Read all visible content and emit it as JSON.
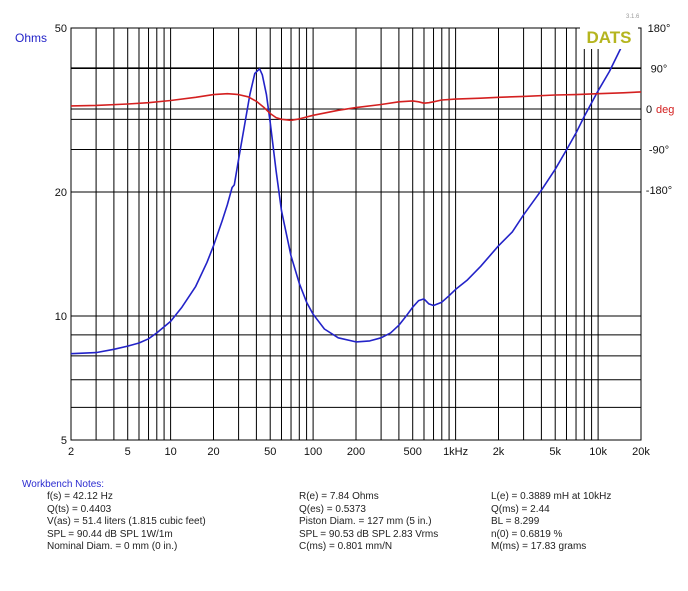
{
  "chart_data": {
    "type": "line",
    "brand": "DATS",
    "version": "3.1.6",
    "x_scale": "log",
    "xlim": [
      2,
      20000
    ],
    "x_ticks": [
      {
        "value": 2,
        "label": "2"
      },
      {
        "value": 5,
        "label": "5"
      },
      {
        "value": 10,
        "label": "10"
      },
      {
        "value": 20,
        "label": "20"
      },
      {
        "value": 50,
        "label": "50"
      },
      {
        "value": 100,
        "label": "100"
      },
      {
        "value": 200,
        "label": "200"
      },
      {
        "value": 500,
        "label": "500"
      },
      {
        "value": 1000,
        "label": "1kHz"
      },
      {
        "value": 2000,
        "label": "2k"
      },
      {
        "value": 5000,
        "label": "5k"
      },
      {
        "value": 10000,
        "label": "10k"
      },
      {
        "value": 20000,
        "label": "20k"
      }
    ],
    "y_left": {
      "label": "Ohms",
      "scale": "log",
      "lim": [
        5,
        50
      ],
      "ticks": [
        {
          "value": 5,
          "label": "5"
        },
        {
          "value": 10,
          "label": "10"
        },
        {
          "value": 20,
          "label": "20"
        },
        {
          "value": 50,
          "label": "50"
        }
      ]
    },
    "y_right": {
      "label": "deg",
      "lim": [
        -180,
        180
      ],
      "ticks": [
        {
          "value": 180,
          "label": "180°"
        },
        {
          "value": 90,
          "label": "90°"
        },
        {
          "value": 0,
          "label": "0"
        },
        {
          "value": -90,
          "label": "-90°"
        },
        {
          "value": -180,
          "label": "-180°"
        }
      ]
    },
    "grid": true,
    "series": [
      {
        "name": "Ohms",
        "color": "#2323c8",
        "axis": "left",
        "points": [
          [
            2,
            8.1
          ],
          [
            3,
            8.15
          ],
          [
            4,
            8.3
          ],
          [
            5,
            8.45
          ],
          [
            6,
            8.6
          ],
          [
            7,
            8.8
          ],
          [
            8,
            9.1
          ],
          [
            10,
            9.7
          ],
          [
            12,
            10.5
          ],
          [
            15,
            11.8
          ],
          [
            18,
            13.5
          ],
          [
            20,
            14.8
          ],
          [
            23,
            17.0
          ],
          [
            25,
            18.6
          ],
          [
            27,
            20.5
          ],
          [
            28,
            20.8
          ],
          [
            30,
            24.0
          ],
          [
            33,
            29.0
          ],
          [
            36,
            34.5
          ],
          [
            39,
            38.8
          ],
          [
            42.1,
            39.8
          ],
          [
            44,
            38.5
          ],
          [
            47,
            34.5
          ],
          [
            50,
            29.5
          ],
          [
            55,
            22.5
          ],
          [
            60,
            18.0
          ],
          [
            70,
            14.0
          ],
          [
            80,
            12.0
          ],
          [
            90,
            10.8
          ],
          [
            100,
            10.1
          ],
          [
            120,
            9.3
          ],
          [
            150,
            8.85
          ],
          [
            200,
            8.65
          ],
          [
            250,
            8.7
          ],
          [
            300,
            8.85
          ],
          [
            350,
            9.1
          ],
          [
            400,
            9.5
          ],
          [
            450,
            10.0
          ],
          [
            500,
            10.5
          ],
          [
            550,
            10.9
          ],
          [
            600,
            11.0
          ],
          [
            650,
            10.7
          ],
          [
            700,
            10.6
          ],
          [
            800,
            10.8
          ],
          [
            900,
            11.2
          ],
          [
            1000,
            11.6
          ],
          [
            1200,
            12.2
          ],
          [
            1500,
            13.2
          ],
          [
            2000,
            14.8
          ],
          [
            2500,
            16.0
          ],
          [
            3000,
            17.6
          ],
          [
            4000,
            20.2
          ],
          [
            5000,
            22.7
          ],
          [
            6000,
            25.3
          ],
          [
            7000,
            27.8
          ],
          [
            8000,
            30.5
          ],
          [
            10000,
            35.2
          ],
          [
            12000,
            39.2
          ],
          [
            14000,
            43.7
          ],
          [
            16000,
            48.0
          ]
        ]
      },
      {
        "name": "deg",
        "color": "#d42020",
        "axis": "right",
        "points": [
          [
            2,
            7
          ],
          [
            3,
            8
          ],
          [
            5,
            11
          ],
          [
            7,
            14
          ],
          [
            10,
            19
          ],
          [
            15,
            26
          ],
          [
            20,
            32
          ],
          [
            25,
            34
          ],
          [
            28,
            33
          ],
          [
            30,
            32
          ],
          [
            35,
            27
          ],
          [
            40,
            17
          ],
          [
            45,
            4
          ],
          [
            50,
            -10
          ],
          [
            55,
            -19
          ],
          [
            60,
            -23
          ],
          [
            70,
            -25
          ],
          [
            80,
            -22
          ],
          [
            100,
            -14
          ],
          [
            150,
            -3
          ],
          [
            200,
            3
          ],
          [
            300,
            10
          ],
          [
            400,
            16
          ],
          [
            500,
            18
          ],
          [
            550,
            16
          ],
          [
            600,
            13
          ],
          [
            650,
            14
          ],
          [
            700,
            16
          ],
          [
            800,
            20
          ],
          [
            1000,
            22
          ],
          [
            1500,
            24
          ],
          [
            2000,
            26
          ],
          [
            3000,
            28
          ],
          [
            5000,
            31
          ],
          [
            7000,
            32
          ],
          [
            10000,
            34
          ],
          [
            15000,
            36
          ],
          [
            20000,
            38
          ]
        ]
      }
    ]
  },
  "notes": {
    "heading": "Workbench Notes:",
    "columns": [
      [
        "f(s) = 42.12 Hz",
        "Q(ts) = 0.4403",
        "V(as) = 51.4 liters  (1.815 cubic feet)",
        "SPL = 90.44 dB SPL 1W/1m",
        "Nominal Diam. = 0 mm (0 in.)"
      ],
      [
        "R(e) = 7.84 Ohms",
        "Q(es) = 0.5373",
        "Piston Diam. = 127 mm (5 in.)",
        "SPL = 90.53 dB SPL 2.83 Vrms",
        "C(ms) = 0.801 mm/N"
      ],
      [
        "L(e) = 0.3889 mH at 10kHz",
        "Q(ms) = 2.44",
        "BL = 8.299",
        "n(0) = 0.6819 %",
        "M(ms) = 17.83 grams"
      ]
    ]
  }
}
